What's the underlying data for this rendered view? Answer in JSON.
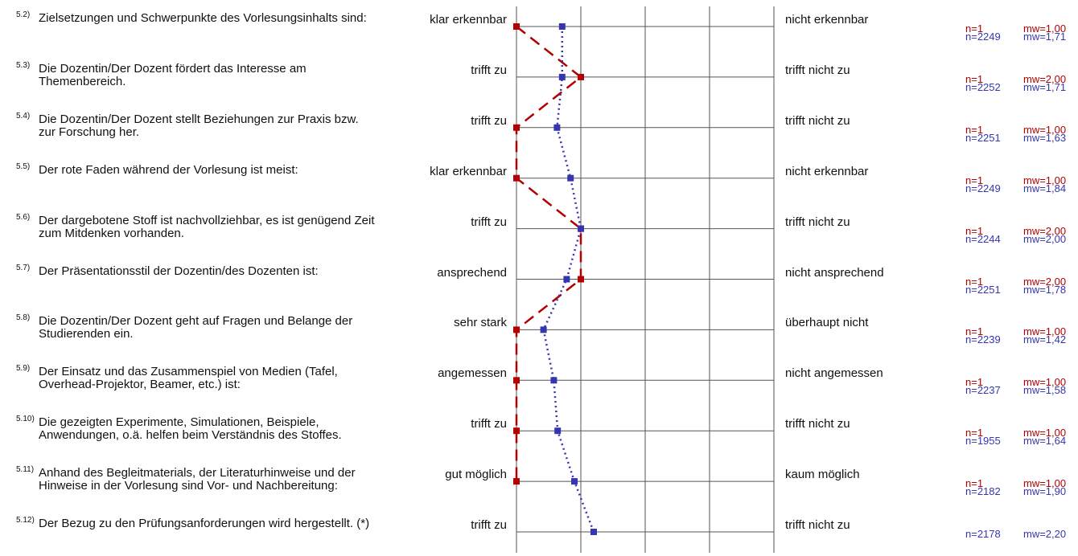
{
  "chart_data": {
    "type": "line",
    "scale": [
      1,
      5
    ],
    "series": [],
    "items": [
      {
        "num": "5.2)",
        "question": "Zielsetzungen und Schwerpunkte des Vorlesungsinhalts sind:",
        "left": "klar erkennbar",
        "right": "nicht erkennbar",
        "red": {
          "n": "n=1",
          "mw": "mw=1,00",
          "value": 1.0
        },
        "blue": {
          "n": "n=2249",
          "mw": "mw=1,71",
          "value": 1.71
        }
      },
      {
        "num": "5.3)",
        "question": "Die Dozentin/Der Dozent fördert das Interesse am Themenbereich.",
        "left": "trifft zu",
        "right": "trifft nicht zu",
        "red": {
          "n": "n=1",
          "mw": "mw=2,00",
          "value": 2.0
        },
        "blue": {
          "n": "n=2252",
          "mw": "mw=1,71",
          "value": 1.71
        }
      },
      {
        "num": "5.4)",
        "question": "Die Dozentin/Der Dozent stellt Beziehungen zur Praxis bzw. zur Forschung her.",
        "left": "trifft zu",
        "right": "trifft nicht zu",
        "red": {
          "n": "n=1",
          "mw": "mw=1,00",
          "value": 1.0
        },
        "blue": {
          "n": "n=2251",
          "mw": "mw=1,63",
          "value": 1.63
        }
      },
      {
        "num": "5.5)",
        "question": "Der rote Faden während der Vorlesung ist meist:",
        "left": "klar erkennbar",
        "right": "nicht erkennbar",
        "red": {
          "n": "n=1",
          "mw": "mw=1,00",
          "value": 1.0
        },
        "blue": {
          "n": "n=2249",
          "mw": "mw=1,84",
          "value": 1.84
        }
      },
      {
        "num": "5.6)",
        "question": "Der dargebotene Stoff ist nachvollziehbar, es ist genügend Zeit zum Mitdenken vorhanden.",
        "left": "trifft zu",
        "right": "trifft nicht zu",
        "red": {
          "n": "n=1",
          "mw": "mw=2,00",
          "value": 2.0
        },
        "blue": {
          "n": "n=2244",
          "mw": "mw=2,00",
          "value": 2.0
        }
      },
      {
        "num": "5.7)",
        "question": "Der Präsentationsstil der Dozentin/des Dozenten ist:",
        "left": "ansprechend",
        "right": "nicht ansprechend",
        "red": {
          "n": "n=1",
          "mw": "mw=2,00",
          "value": 2.0
        },
        "blue": {
          "n": "n=2251",
          "mw": "mw=1,78",
          "value": 1.78
        }
      },
      {
        "num": "5.8)",
        "question": "Die Dozentin/Der Dozent geht auf Fragen und Belange der Studierenden ein.",
        "left": "sehr stark",
        "right": "überhaupt nicht",
        "red": {
          "n": "n=1",
          "mw": "mw=1,00",
          "value": 1.0
        },
        "blue": {
          "n": "n=2239",
          "mw": "mw=1,42",
          "value": 1.42
        }
      },
      {
        "num": "5.9)",
        "question": "Der Einsatz und das Zusammenspiel von Medien (Tafel, Overhead-Projektor, Beamer, etc.) ist:",
        "left": "angemessen",
        "right": "nicht angemessen",
        "red": {
          "n": "n=1",
          "mw": "mw=1,00",
          "value": 1.0
        },
        "blue": {
          "n": "n=2237",
          "mw": "mw=1,58",
          "value": 1.58
        }
      },
      {
        "num": "5.10)",
        "question": "Die gezeigten Experimente, Simulationen, Beispiele, Anwendungen, o.ä. helfen beim Verständnis des Stoffes.",
        "left": "trifft zu",
        "right": "trifft nicht zu",
        "red": {
          "n": "n=1",
          "mw": "mw=1,00",
          "value": 1.0
        },
        "blue": {
          "n": "n=1955",
          "mw": "mw=1,64",
          "value": 1.64
        }
      },
      {
        "num": "5.11)",
        "question": "Anhand des Begleitmaterials, der Literaturhinweise und der Hinweise in der Vorlesung sind Vor- und Nachbereitung:",
        "left": "gut möglich",
        "right": "kaum möglich",
        "red": {
          "n": "n=1",
          "mw": "mw=1,00",
          "value": 1.0
        },
        "blue": {
          "n": "n=2182",
          "mw": "mw=1,90",
          "value": 1.9
        }
      },
      {
        "num": "5.12)",
        "question": "Der Bezug zu den Prüfungsanforderungen wird hergestellt. (*)",
        "left": "trifft zu",
        "right": "trifft nicht zu",
        "red": null,
        "blue": {
          "n": "n=2178",
          "mw": "mw=2,20",
          "value": 2.2
        }
      }
    ]
  },
  "colors": {
    "red": "#b30000",
    "blue": "#3535b0",
    "grid": "#555555"
  }
}
